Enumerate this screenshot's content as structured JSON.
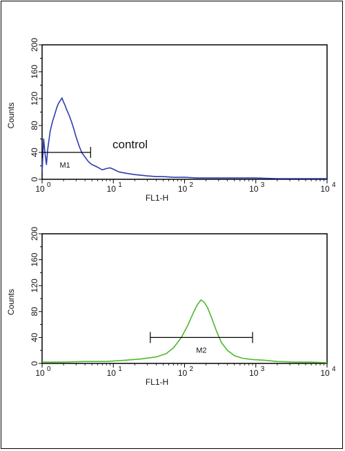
{
  "chart_data": [
    {
      "type": "line",
      "xscale": "log",
      "xlim": [
        1,
        10000
      ],
      "ylim": [
        0,
        200
      ],
      "xlabel": "FL1-H",
      "ylabel": "Counts",
      "xticks": [
        "10",
        "10",
        "10",
        "10",
        "10"
      ],
      "xtick_exponents": [
        "0",
        "1",
        "2",
        "3",
        "4"
      ],
      "yticks": [
        "0",
        "40",
        "80",
        "120",
        "160",
        "200"
      ],
      "ytick_values": [
        0,
        40,
        80,
        120,
        160,
        200
      ],
      "color": "#2a3bb0",
      "annotation": "control",
      "gate": {
        "label": "M1",
        "start": 1.0,
        "end": 4.8,
        "level": 40
      },
      "series": [
        {
          "x": [
            1.0,
            1.05,
            1.1,
            1.15,
            1.2,
            1.3,
            1.4,
            1.5,
            1.6,
            1.7,
            1.8,
            1.9,
            2.0,
            2.1,
            2.2,
            2.4,
            2.6,
            2.8,
            3.0,
            3.3,
            3.6,
            4.0,
            4.5,
            5.0,
            5.5,
            6.0,
            7.0,
            8.0,
            9.0,
            10,
            12,
            15,
            20,
            25,
            30,
            40,
            50,
            70,
            100,
            150,
            200,
            300,
            500,
            700,
            1000,
            2000,
            5000,
            10000
          ],
          "y": [
            10,
            60,
            38,
            22,
            45,
            72,
            86,
            96,
            106,
            113,
            117,
            121,
            115,
            110,
            104,
            95,
            85,
            74,
            63,
            50,
            40,
            33,
            26,
            22,
            20,
            18,
            14,
            16,
            17,
            15,
            11,
            9,
            7,
            6,
            5,
            4,
            4,
            3,
            3,
            2,
            2,
            2,
            2,
            2,
            2,
            1,
            1,
            1
          ]
        }
      ]
    },
    {
      "type": "line",
      "xscale": "log",
      "xlim": [
        1,
        10000
      ],
      "ylim": [
        0,
        200
      ],
      "xlabel": "FL1-H",
      "ylabel": "Counts",
      "xticks": [
        "10",
        "10",
        "10",
        "10",
        "10"
      ],
      "xtick_exponents": [
        "0",
        "1",
        "2",
        "3",
        "4"
      ],
      "yticks": [
        "0",
        "40",
        "80",
        "120",
        "160",
        "200"
      ],
      "ytick_values": [
        0,
        40,
        80,
        120,
        160,
        200
      ],
      "color": "#4cb82c",
      "gate": {
        "label": "M2",
        "start": 33,
        "end": 900,
        "level": 40
      },
      "series": [
        {
          "x": [
            1,
            2,
            4,
            8,
            15,
            25,
            40,
            55,
            70,
            90,
            110,
            130,
            150,
            170,
            190,
            210,
            240,
            280,
            330,
            400,
            500,
            650,
            900,
            1300,
            2000,
            3500,
            6000,
            10000
          ],
          "y": [
            2,
            2,
            3,
            3,
            5,
            7,
            10,
            15,
            24,
            40,
            58,
            76,
            90,
            98,
            94,
            86,
            70,
            50,
            32,
            20,
            12,
            8,
            6,
            5,
            3,
            2,
            2,
            1
          ]
        }
      ]
    }
  ]
}
